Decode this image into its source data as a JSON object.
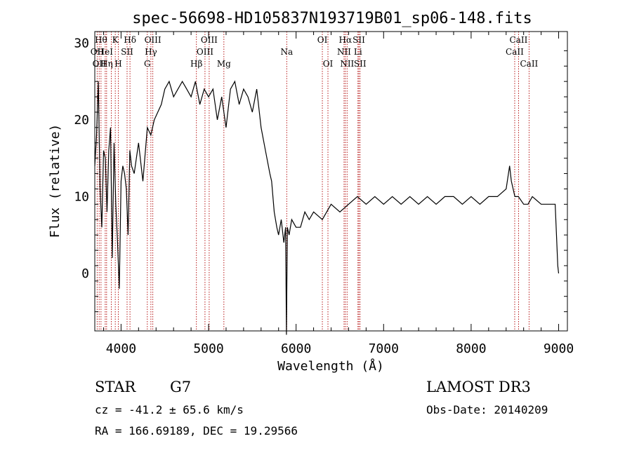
{
  "chart_data": {
    "type": "line",
    "title": "spec-56698-HD105837N193719B01_sp06-148.fits",
    "xlabel": "Wavelength (Å)",
    "ylabel": "Flux (relative)",
    "xlim": [
      3700,
      9100
    ],
    "ylim": [
      -7.5,
      31.5
    ],
    "xticks": [
      4000,
      5000,
      6000,
      7000,
      8000,
      9000
    ],
    "yticks": [
      0,
      10,
      20,
      30
    ],
    "grid": false,
    "legend": "none",
    "series": [
      {
        "x": [
          3700,
          3720,
          3740,
          3760,
          3780,
          3800,
          3820,
          3840,
          3860,
          3880,
          3900,
          3920,
          3940,
          3960,
          3980,
          4000,
          4020,
          4040,
          4060,
          4080,
          4100,
          4120,
          4150,
          4200,
          4250,
          4300,
          4340,
          4380,
          4420,
          4460,
          4500,
          4550,
          4600,
          4650,
          4700,
          4750,
          4800,
          4850,
          4900,
          4950,
          5000,
          5050,
          5100,
          5150,
          5200,
          5250,
          5300,
          5350,
          5400,
          5450,
          5500,
          5550,
          5600,
          5650,
          5700,
          5720,
          5750,
          5780,
          5800,
          5830,
          5860,
          5880,
          5890,
          5900,
          5920,
          5950,
          6000,
          6050,
          6100,
          6150,
          6200,
          6300,
          6400,
          6500,
          6600,
          6700,
          6800,
          6900,
          7000,
          7100,
          7200,
          7300,
          7400,
          7500,
          7600,
          7700,
          7800,
          7900,
          8000,
          8100,
          8200,
          8300,
          8400,
          8440,
          8460,
          8480,
          8500,
          8540,
          8600,
          8650,
          8700,
          8800,
          8900,
          8960,
          8990,
          9000
        ],
        "y": [
          14,
          18,
          25,
          11,
          6,
          16,
          15,
          8,
          16,
          19,
          2,
          17,
          9,
          4,
          -2,
          12,
          14,
          13,
          11,
          5,
          16,
          14,
          13,
          17,
          12,
          19,
          18,
          20,
          21,
          22,
          24,
          25,
          23,
          24,
          25,
          24,
          23,
          25,
          22,
          24,
          23,
          24,
          20,
          23,
          19,
          24,
          25,
          22,
          24,
          23,
          21,
          24,
          19,
          16,
          13,
          12,
          8,
          6,
          5,
          7,
          4,
          6,
          -8,
          6,
          5,
          7,
          6,
          6,
          8,
          7,
          8,
          7,
          9,
          8,
          9,
          10,
          9,
          10,
          9,
          10,
          9,
          10,
          9,
          10,
          9,
          10,
          10,
          9,
          10,
          9,
          10,
          10,
          11,
          14,
          12,
          11,
          10,
          10,
          9,
          9,
          10,
          9,
          9,
          9,
          1,
          0
        ]
      }
    ],
    "lines": [
      {
        "wl": 3727,
        "label": "OII",
        "row": 2
      },
      {
        "wl": 3750,
        "label": "OII",
        "row": 3
      },
      {
        "wl": 3771,
        "label": "Hθ",
        "row": 1
      },
      {
        "wl": 3819,
        "label": "HeI",
        "row": 2
      },
      {
        "wl": 3835,
        "label": "Hη",
        "row": 3
      },
      {
        "wl": 3889,
        "label": "",
        "row": 0
      },
      {
        "wl": 3934,
        "label": "K",
        "row": 1
      },
      {
        "wl": 3969,
        "label": "H",
        "row": 3
      },
      {
        "wl": 4069,
        "label": "SII",
        "row": 2
      },
      {
        "wl": 4102,
        "label": "Hδ",
        "row": 1
      },
      {
        "wl": 4300,
        "label": "G",
        "row": 3
      },
      {
        "wl": 4341,
        "label": "Hγ",
        "row": 2
      },
      {
        "wl": 4363,
        "label": "OIII",
        "row": 1
      },
      {
        "wl": 4861,
        "label": "Hβ",
        "row": 3
      },
      {
        "wl": 4959,
        "label": "OIII",
        "row": 2
      },
      {
        "wl": 5007,
        "label": "OIII",
        "row": 1
      },
      {
        "wl": 5175,
        "label": "Mg",
        "row": 3
      },
      {
        "wl": 5893,
        "label": "Na",
        "row": 2
      },
      {
        "wl": 6300,
        "label": "OI",
        "row": 1
      },
      {
        "wl": 6364,
        "label": "OI",
        "row": 3
      },
      {
        "wl": 6548,
        "label": "NII",
        "row": 2
      },
      {
        "wl": 6563,
        "label": "Hα",
        "row": 1
      },
      {
        "wl": 6583,
        "label": "NII",
        "row": 3
      },
      {
        "wl": 6707,
        "label": "Li",
        "row": 2
      },
      {
        "wl": 6717,
        "label": "SII",
        "row": 1
      },
      {
        "wl": 6731,
        "label": "SII",
        "row": 3
      },
      {
        "wl": 8498,
        "label": "CaII",
        "row": 2
      },
      {
        "wl": 8542,
        "label": "CaII",
        "row": 1
      },
      {
        "wl": 8662,
        "label": "CaII",
        "row": 3
      }
    ]
  },
  "info": {
    "class": "STAR",
    "subclass": "G7",
    "survey": "LAMOST DR3",
    "cz": "cz = -41.2 ± 65.6 km/s",
    "obsdate": "Obs-Date: 20140209",
    "radec": "RA = 166.69189, DEC =  19.29566"
  }
}
